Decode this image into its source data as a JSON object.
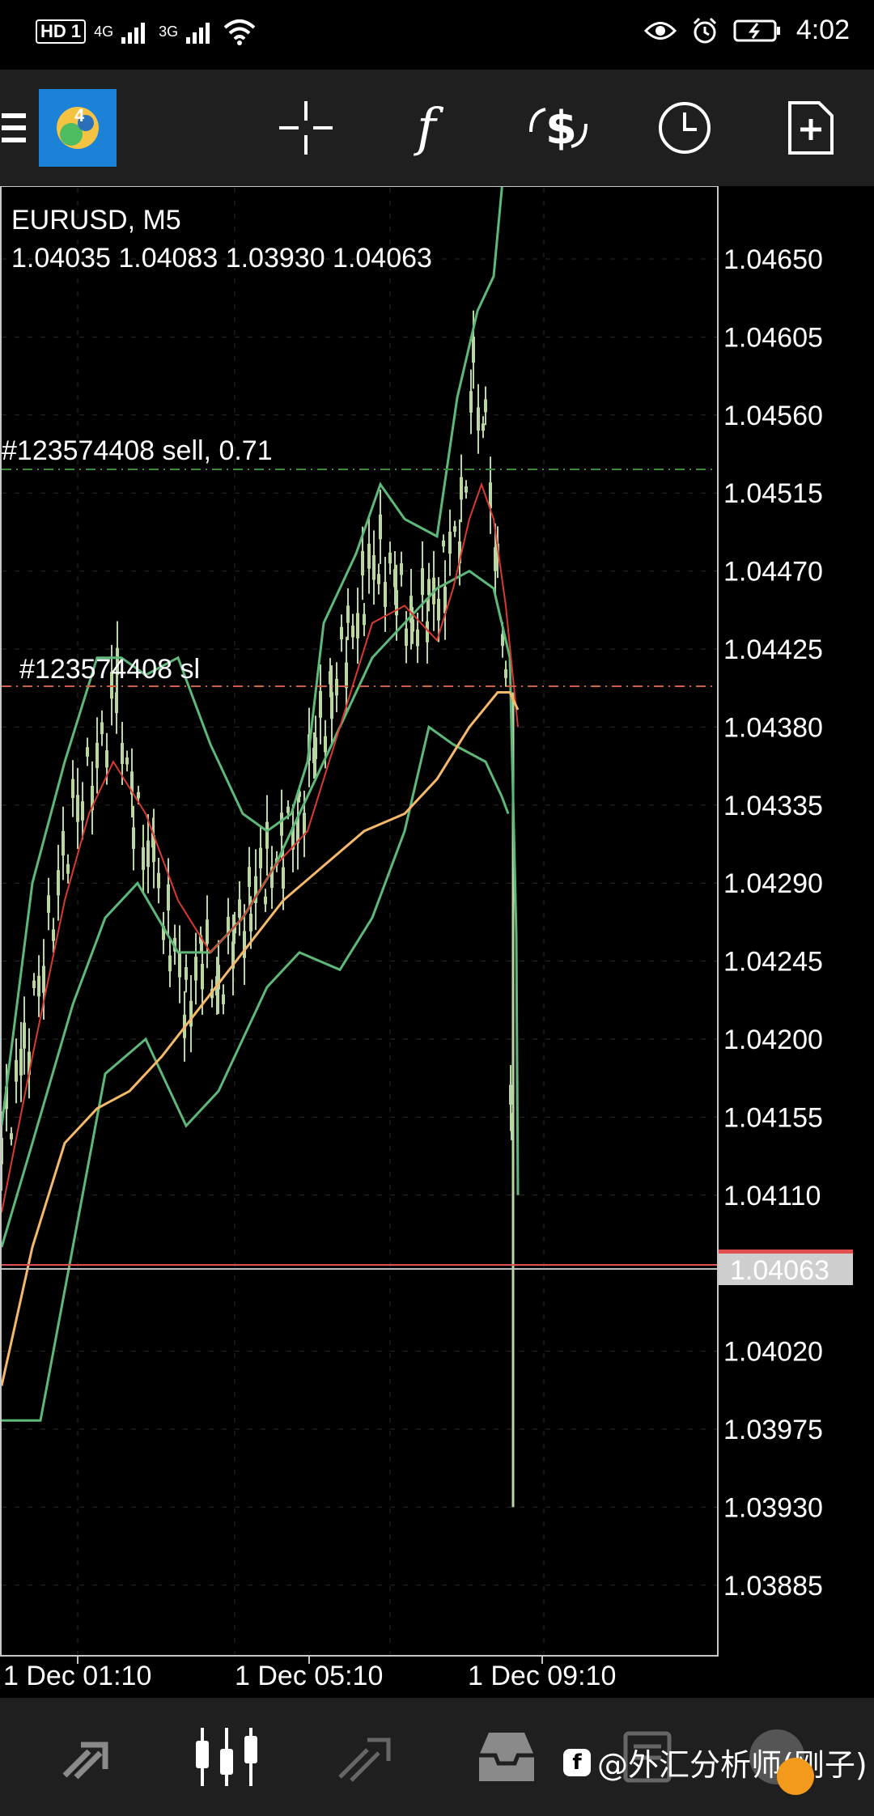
{
  "status_bar": {
    "network_left": "HD 1",
    "net1": "4G",
    "net2": "3G",
    "time": "4:02"
  },
  "toolbar": {
    "icons": [
      "menu-icon",
      "app-logo",
      "crosshair-icon",
      "function-icon",
      "trade-icon",
      "clock-icon",
      "add-page-icon"
    ]
  },
  "chart": {
    "symbol": "EURUSD, M5",
    "ohlc": "1.04035 1.04083 1.03930 1.04063",
    "order_label": "#123574408 sell, 0.71",
    "sl_label": "#123574408 sl",
    "current_price": "1.04063",
    "price_ticks": [
      "1.04650",
      "1.04605",
      "1.04560",
      "1.04515",
      "1.04470",
      "1.04425",
      "1.04380",
      "1.04335",
      "1.04290",
      "1.04245",
      "1.04200",
      "1.04155",
      "1.04110",
      "1.04020",
      "1.03975",
      "1.03930",
      "1.03885"
    ],
    "time_labels": [
      "1 Dec 01:10",
      "1 Dec 05:10",
      "1 Dec 09:10"
    ],
    "colors": {
      "bb": "#5db87a",
      "ma_fast": "#d83a2e",
      "ma_slow": "#f6b96a",
      "candle": "#b9d6a3",
      "order_line": "#3a8a3a",
      "sl_line": "#d06040",
      "price_line": "#e05050"
    }
  },
  "bottom_nav": {
    "icons": [
      "quotes-icon",
      "chart-icon",
      "trade-icon",
      "history-icon",
      "messages-icon",
      "settings-icon"
    ]
  },
  "watermark": "@外汇分析师(刚子)"
}
